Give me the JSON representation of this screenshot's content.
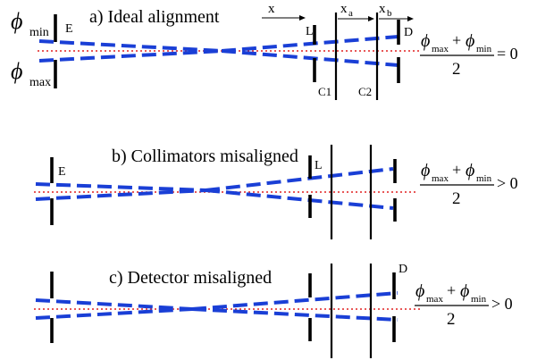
{
  "colors": {
    "beam": "#1a3fd6",
    "axis": "#e02020",
    "ink": "#000000"
  },
  "panels": [
    {
      "title": "a) Ideal alignment",
      "labels": {
        "E": "E",
        "L": "L",
        "D": "D",
        "C1": "C1",
        "C2": "C2"
      },
      "phi_min": "ϕ",
      "phi_min_sub": "min",
      "phi_max": "ϕ",
      "phi_max_sub": "max",
      "x": "x",
      "xa": "x",
      "xa_sub": "a",
      "xb": "x",
      "xb_sub": "b",
      "formula": {
        "num_phi1": "ϕ",
        "num_sub1": "max",
        "plus": "+",
        "num_phi2": "ϕ",
        "num_sub2": "min",
        "den": "2",
        "rel": "= 0"
      }
    },
    {
      "title": "b) Collimators misaligned",
      "labels": {
        "E": "E",
        "L": "L"
      },
      "formula": {
        "num_phi1": "ϕ",
        "num_sub1": "max",
        "plus": "+",
        "num_phi2": "ϕ",
        "num_sub2": "min",
        "den": "2",
        "rel": "> 0"
      }
    },
    {
      "title": "c) Detector misaligned",
      "labels": {
        "D": "D"
      },
      "formula": {
        "num_phi1": "ϕ",
        "num_sub1": "max",
        "plus": "+",
        "num_phi2": "ϕ",
        "num_sub2": "min",
        "den": "2",
        "rel": "> 0"
      }
    }
  ]
}
